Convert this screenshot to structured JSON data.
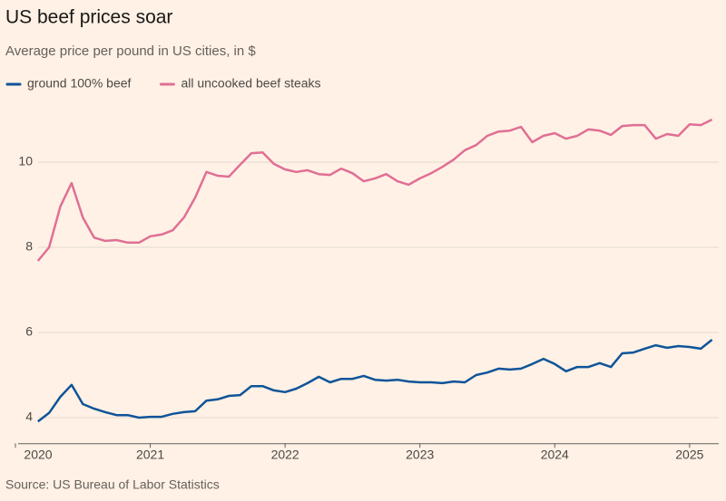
{
  "chart_data": {
    "type": "line",
    "title": "US beef prices soar",
    "subtitle": "Average price per pound in US cities, in $",
    "source": "Source: US Bureau of Labor Statistics",
    "x": [
      "2020-03",
      "2020-04",
      "2020-05",
      "2020-06",
      "2020-07",
      "2020-08",
      "2020-09",
      "2020-10",
      "2020-11",
      "2020-12",
      "2021-01",
      "2021-02",
      "2021-03",
      "2021-04",
      "2021-05",
      "2021-06",
      "2021-07",
      "2021-08",
      "2021-09",
      "2021-10",
      "2021-11",
      "2021-12",
      "2022-01",
      "2022-02",
      "2022-03",
      "2022-04",
      "2022-05",
      "2022-06",
      "2022-07",
      "2022-08",
      "2022-09",
      "2022-10",
      "2022-11",
      "2022-12",
      "2023-01",
      "2023-02",
      "2023-03",
      "2023-04",
      "2023-05",
      "2023-06",
      "2023-07",
      "2023-08",
      "2023-09",
      "2023-10",
      "2023-11",
      "2023-12",
      "2024-01",
      "2024-02",
      "2024-03",
      "2024-04",
      "2024-05",
      "2024-06",
      "2024-07",
      "2024-08",
      "2024-09",
      "2024-10",
      "2024-11",
      "2024-12",
      "2025-01",
      "2025-02",
      "2025-03"
    ],
    "series": [
      {
        "name": "ground 100% beef",
        "color": "#0f5499",
        "values": [
          3.91,
          4.11,
          4.49,
          4.77,
          4.32,
          4.21,
          4.13,
          4.06,
          4.06,
          4.0,
          4.02,
          4.02,
          4.09,
          4.13,
          4.15,
          4.4,
          4.43,
          4.51,
          4.53,
          4.74,
          4.74,
          4.64,
          4.6,
          4.68,
          4.81,
          4.96,
          4.83,
          4.91,
          4.91,
          4.98,
          4.89,
          4.87,
          4.89,
          4.85,
          4.83,
          4.83,
          4.81,
          4.85,
          4.83,
          5.0,
          5.06,
          5.15,
          5.13,
          5.15,
          5.26,
          5.38,
          5.26,
          5.09,
          5.19,
          5.19,
          5.28,
          5.19,
          5.51,
          5.53,
          5.62,
          5.7,
          5.64,
          5.68,
          5.66,
          5.62,
          5.83
        ]
      },
      {
        "name": "all uncooked beef steaks",
        "color": "#e06f95",
        "values": [
          7.68,
          8.0,
          8.96,
          9.51,
          8.7,
          8.23,
          8.15,
          8.17,
          8.11,
          8.11,
          8.26,
          8.3,
          8.4,
          8.7,
          9.17,
          9.77,
          9.68,
          9.66,
          9.94,
          10.21,
          10.23,
          9.96,
          9.83,
          9.77,
          9.81,
          9.72,
          9.7,
          9.85,
          9.74,
          9.55,
          9.62,
          9.72,
          9.55,
          9.47,
          9.62,
          9.74,
          9.89,
          10.06,
          10.28,
          10.4,
          10.62,
          10.72,
          10.74,
          10.83,
          10.47,
          10.62,
          10.68,
          10.55,
          10.62,
          10.77,
          10.74,
          10.64,
          10.85,
          10.87,
          10.87,
          10.55,
          10.66,
          10.62,
          10.89,
          10.87,
          11.0
        ]
      }
    ],
    "xlim": [
      "2020-01",
      "2025-04"
    ],
    "xticks": [
      2020,
      2021,
      2022,
      2023,
      2024,
      2025
    ],
    "ylim": [
      3.4,
      11.4
    ],
    "yticks": [
      4,
      6,
      8,
      10
    ],
    "grid": true
  }
}
